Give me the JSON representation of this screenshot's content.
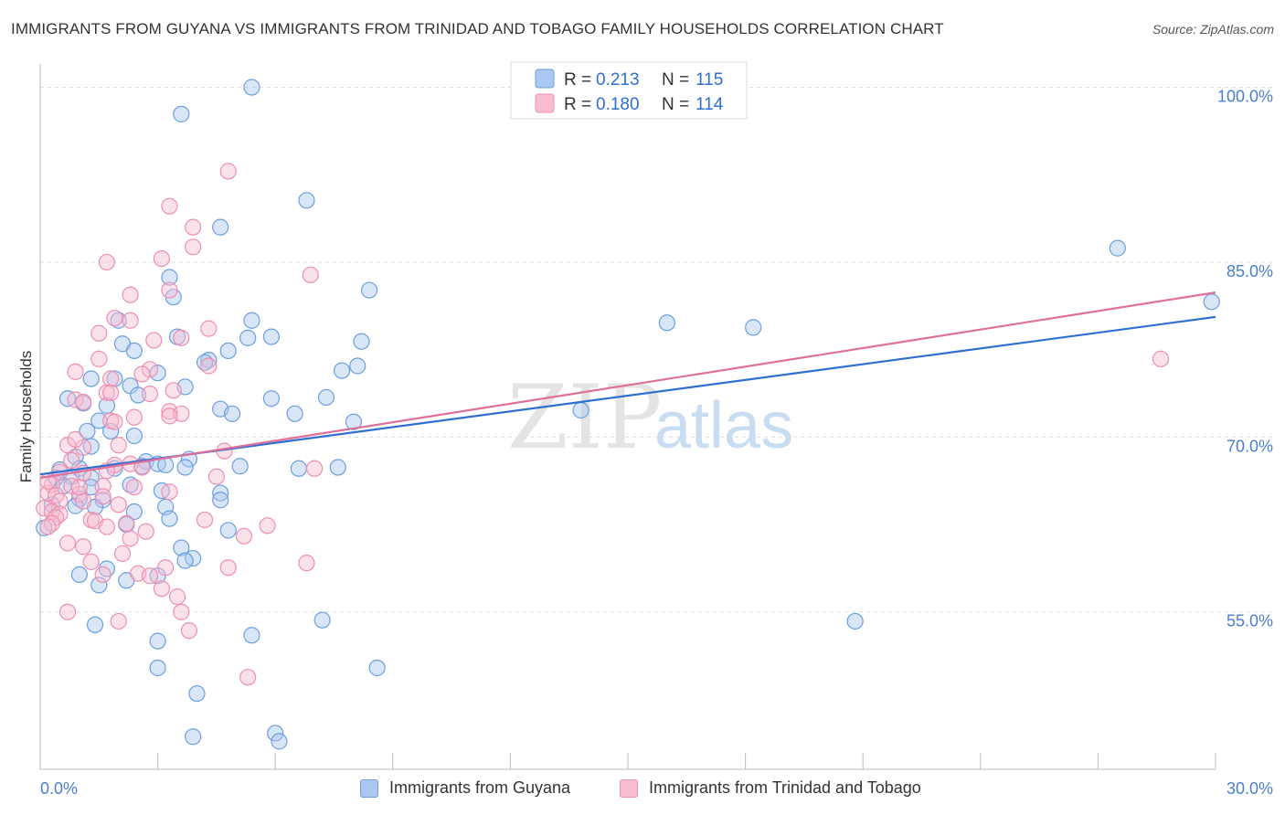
{
  "header": {
    "title": "IMMIGRANTS FROM GUYANA VS IMMIGRANTS FROM TRINIDAD AND TOBAGO FAMILY HOUSEHOLDS CORRELATION CHART",
    "source": "Source: ZipAtlas.com"
  },
  "watermark": {
    "zip": "ZIP",
    "atlas": "atlas"
  },
  "colors": {
    "series1_fill": "#aac8f0",
    "series1_stroke": "#6b9fe0",
    "series1_line": "#2f6fd0",
    "series2_fill": "#f7bcd0",
    "series2_stroke": "#ee8fb0",
    "series2_line": "#e0709a",
    "tick_label": "#4a7fd0",
    "grid": "#dddddd"
  },
  "chart_data": {
    "type": "scatter",
    "ylabel": "Family Households",
    "xlim": [
      0,
      30
    ],
    "ylim": [
      41.5,
      102
    ],
    "x_tick_labels": [
      "0.0%",
      "30.0%"
    ],
    "y_ticks": [
      55,
      70,
      85,
      100
    ],
    "y_tick_labels": [
      "55.0%",
      "70.0%",
      "85.0%",
      "100.0%"
    ],
    "legend": [
      {
        "r_label": "R = ",
        "r_value": "0.213",
        "n_label": "N = ",
        "n_value": "115"
      },
      {
        "r_label": "R = ",
        "r_value": "0.180",
        "n_label": "N = ",
        "n_value": "114"
      }
    ],
    "series": [
      {
        "name": "Immigrants from Guyana",
        "trend": {
          "x0": 0,
          "y0": 66.8,
          "x1": 30,
          "y1": 80.3
        },
        "points": [
          [
            5.4,
            100
          ],
          [
            3.6,
            97.7
          ],
          [
            6.8,
            90.3
          ],
          [
            4.6,
            88
          ],
          [
            27.5,
            86.2
          ],
          [
            3.3,
            83.7
          ],
          [
            8.4,
            82.6
          ],
          [
            3.4,
            82
          ],
          [
            29.9,
            81.6
          ],
          [
            2.0,
            80.0
          ],
          [
            5.4,
            80.0
          ],
          [
            16.0,
            79.8
          ],
          [
            18.2,
            79.4
          ],
          [
            5.9,
            78.6
          ],
          [
            3.5,
            78.6
          ],
          [
            5.3,
            78.5
          ],
          [
            8.2,
            78.2
          ],
          [
            2.1,
            78.0
          ],
          [
            2.4,
            77.4
          ],
          [
            4.8,
            77.4
          ],
          [
            4.3,
            76.6
          ],
          [
            4.2,
            76.4
          ],
          [
            8.1,
            76.1
          ],
          [
            7.7,
            75.7
          ],
          [
            3.0,
            75.5
          ],
          [
            1.3,
            75
          ],
          [
            1.9,
            75
          ],
          [
            2.3,
            74.4
          ],
          [
            3.7,
            74.3
          ],
          [
            2.5,
            73.6
          ],
          [
            0.7,
            73.3
          ],
          [
            5.9,
            73.3
          ],
          [
            7.3,
            73.4
          ],
          [
            1.1,
            72.9
          ],
          [
            1.7,
            72.7
          ],
          [
            4.6,
            72.4
          ],
          [
            4.9,
            72.0
          ],
          [
            6.5,
            72.0
          ],
          [
            13.8,
            72.3
          ],
          [
            1.5,
            71.4
          ],
          [
            8.0,
            71.3
          ],
          [
            1.2,
            70.5
          ],
          [
            1.8,
            70.5
          ],
          [
            2.4,
            70.1
          ],
          [
            1.3,
            69.2
          ],
          [
            0.9,
            68.3
          ],
          [
            3.8,
            68.1
          ],
          [
            2.7,
            67.9
          ],
          [
            3.0,
            67.7
          ],
          [
            0.5,
            67.2
          ],
          [
            1.0,
            67.3
          ],
          [
            1.9,
            67.3
          ],
          [
            2.6,
            67.5
          ],
          [
            3.2,
            67.6
          ],
          [
            3.7,
            67.4
          ],
          [
            5.1,
            67.5
          ],
          [
            6.6,
            67.3
          ],
          [
            7.6,
            67.4
          ],
          [
            0.4,
            66.5
          ],
          [
            0.8,
            66.6
          ],
          [
            1.3,
            66.5
          ],
          [
            0.6,
            65.8
          ],
          [
            1.3,
            65.7
          ],
          [
            2.3,
            65.9
          ],
          [
            3.1,
            65.4
          ],
          [
            4.6,
            65.2
          ],
          [
            1.0,
            64.7
          ],
          [
            1.6,
            64.6
          ],
          [
            4.6,
            64.6
          ],
          [
            0.3,
            64.2
          ],
          [
            0.9,
            64.1
          ],
          [
            1.4,
            64.0
          ],
          [
            3.2,
            64.0
          ],
          [
            2.4,
            63.6
          ],
          [
            3.3,
            63.0
          ],
          [
            2.2,
            62.5
          ],
          [
            4.8,
            62.0
          ],
          [
            0.1,
            62.2
          ],
          [
            3.6,
            60.5
          ],
          [
            3.9,
            59.6
          ],
          [
            3.7,
            59.4
          ],
          [
            1.7,
            58.7
          ],
          [
            1.0,
            58.2
          ],
          [
            3.0,
            58.1
          ],
          [
            2.2,
            57.7
          ],
          [
            1.5,
            57.3
          ],
          [
            7.2,
            54.3
          ],
          [
            1.4,
            53.9
          ],
          [
            5.4,
            53.0
          ],
          [
            20.8,
            54.2
          ],
          [
            3.0,
            52.5
          ],
          [
            3.0,
            50.2
          ],
          [
            8.6,
            50.2
          ],
          [
            4.0,
            48.0
          ],
          [
            6.0,
            44.6
          ],
          [
            6.1,
            43.9
          ],
          [
            3.9,
            44.3
          ]
        ]
      },
      {
        "name": "Immigrants from Trinidad and Tobago",
        "trend": {
          "x0": 0,
          "y0": 66.5,
          "x1": 30,
          "y1": 82.4
        },
        "points": [
          [
            4.8,
            92.8
          ],
          [
            3.3,
            89.8
          ],
          [
            3.9,
            88.0
          ],
          [
            3.9,
            86.3
          ],
          [
            3.1,
            85.3
          ],
          [
            1.7,
            85.0
          ],
          [
            6.9,
            83.9
          ],
          [
            3.3,
            82.6
          ],
          [
            2.3,
            82.2
          ],
          [
            1.9,
            80.2
          ],
          [
            2.3,
            80.0
          ],
          [
            4.3,
            79.3
          ],
          [
            1.5,
            78.9
          ],
          [
            2.9,
            78.3
          ],
          [
            3.6,
            78.5
          ],
          [
            1.5,
            76.7
          ],
          [
            4.3,
            76.1
          ],
          [
            0.9,
            75.6
          ],
          [
            2.8,
            75.8
          ],
          [
            1.8,
            75.0
          ],
          [
            1.7,
            73.8
          ],
          [
            2.8,
            73.7
          ],
          [
            0.9,
            73.2
          ],
          [
            1.1,
            73.0
          ],
          [
            3.3,
            72.2
          ],
          [
            3.6,
            72.0
          ],
          [
            2.4,
            71.7
          ],
          [
            1.8,
            71.4
          ],
          [
            1.9,
            71.3
          ],
          [
            3.3,
            71.8
          ],
          [
            0.7,
            69.3
          ],
          [
            1.1,
            69.1
          ],
          [
            2.0,
            69.3
          ],
          [
            4.7,
            68.8
          ],
          [
            0.8,
            68.0
          ],
          [
            1.9,
            67.6
          ],
          [
            2.3,
            67.7
          ],
          [
            2.6,
            67.4
          ],
          [
            7.0,
            67.3
          ],
          [
            0.5,
            67.0
          ],
          [
            1.1,
            66.9
          ],
          [
            1.7,
            67.1
          ],
          [
            4.5,
            66.6
          ],
          [
            0.3,
            65.9
          ],
          [
            0.8,
            65.8
          ],
          [
            1.6,
            65.8
          ],
          [
            2.4,
            65.7
          ],
          [
            3.3,
            65.3
          ],
          [
            0.2,
            65.2
          ],
          [
            0.4,
            65.0
          ],
          [
            1.0,
            65.1
          ],
          [
            1.6,
            64.9
          ],
          [
            0.5,
            64.5
          ],
          [
            1.1,
            64.5
          ],
          [
            2.0,
            64.2
          ],
          [
            0.1,
            63.9
          ],
          [
            0.3,
            63.6
          ],
          [
            0.5,
            63.4
          ],
          [
            0.4,
            63.1
          ],
          [
            1.3,
            62.9
          ],
          [
            1.4,
            62.8
          ],
          [
            4.2,
            62.9
          ],
          [
            0.3,
            62.6
          ],
          [
            2.2,
            62.6
          ],
          [
            5.8,
            62.4
          ],
          [
            0.2,
            62.3
          ],
          [
            1.7,
            62.3
          ],
          [
            2.7,
            61.9
          ],
          [
            5.2,
            61.5
          ],
          [
            2.3,
            61.3
          ],
          [
            0.7,
            60.9
          ],
          [
            1.1,
            60.6
          ],
          [
            2.1,
            60.0
          ],
          [
            1.3,
            59.3
          ],
          [
            3.2,
            58.8
          ],
          [
            4.8,
            58.8
          ],
          [
            6.8,
            59.2
          ],
          [
            2.5,
            58.3
          ],
          [
            1.6,
            58.2
          ],
          [
            2.8,
            58.1
          ],
          [
            3.1,
            57.0
          ],
          [
            3.5,
            56.3
          ],
          [
            0.7,
            55.0
          ],
          [
            3.6,
            55.0
          ],
          [
            2.0,
            54.2
          ],
          [
            3.8,
            53.4
          ],
          [
            5.3,
            49.4
          ],
          [
            28.6,
            76.7
          ],
          [
            1.8,
            73.8
          ],
          [
            3.4,
            74.0
          ],
          [
            2.6,
            75.4
          ],
          [
            0.9,
            69.8
          ],
          [
            1.0,
            65.7
          ],
          [
            0.2,
            66.2
          ]
        ]
      }
    ]
  }
}
